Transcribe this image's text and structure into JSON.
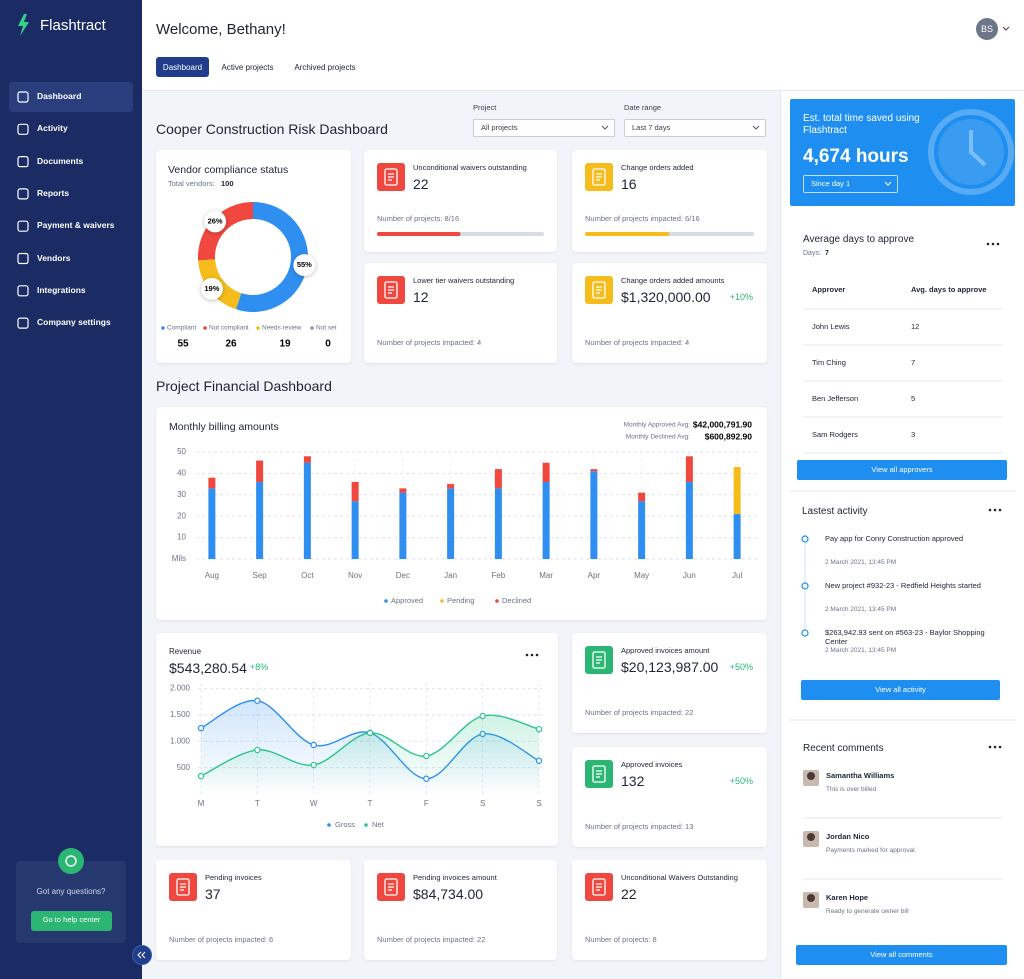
{
  "sidebar": {
    "brand": "Flashtract",
    "nav": [
      "Dashboard",
      "Activity",
      "Documents",
      "Reports",
      "Payment & waivers",
      "Vendors",
      "Integrations",
      "Company settings"
    ],
    "help_text": "Got any questions?",
    "help_button": "Go to help center"
  },
  "header": {
    "title": "Welcome, Bethany!",
    "avatar": "BS",
    "tabs": [
      "Dashboard",
      "Active projects",
      "Archived projects"
    ]
  },
  "risk": {
    "title": "Cooper Construction Risk Dashboard",
    "project_label": "Project",
    "project_value": "All projects",
    "date_label": "Date range",
    "date_value": "Last 7 days",
    "compliance": {
      "type": "pie",
      "title": "Vendor compliance status",
      "total_label": "Total vendors:",
      "total": 100,
      "segments": [
        {
          "name": "Compliant",
          "value": 55,
          "value_label": "55%",
          "color": "#2e8ff0"
        },
        {
          "name": "Not compliant",
          "value": 26,
          "value_label": "26%",
          "color": "#f0473f"
        },
        {
          "name": "Needs review",
          "value": 19,
          "value_label": "19%",
          "color": "#f5bc1c"
        },
        {
          "name": "Not set",
          "value": 0,
          "color": "#8a94a6"
        }
      ]
    },
    "cards": [
      {
        "title": "Unconditional waivers outstanding",
        "value": 22,
        "footer": "Number of projects: 8/16",
        "icon_color": "#f0473f"
      },
      {
        "title": "Change orders added",
        "value": 16,
        "footer": "Number of projects impacted: 6/16",
        "icon_color": "#f5bc1c"
      },
      {
        "title": "Lower tier waivers outstanding",
        "value": 12,
        "footer": "Number of projects impacted: 4",
        "icon_color": "#f0473f"
      },
      {
        "title": "Change orders added amounts",
        "value": "$1,320,000.00",
        "change": "+10%",
        "footer": "Number of projects impacted: 4",
        "icon_color": "#f5bc1c"
      }
    ]
  },
  "financial": {
    "title": "Project Financial Dashboard",
    "billing": {
      "type": "bar",
      "stacked": true,
      "title": "Monthly billing amounts",
      "averages": [
        {
          "label": "Monthly Approved Avg:",
          "value": "$42,000,791.90"
        },
        {
          "label": "Monthly Declined Avg:",
          "value": "$600,892.90"
        }
      ],
      "categories": [
        "Aug",
        "Sep",
        "Oct",
        "Nov",
        "Dec",
        "Jan",
        "Feb",
        "Mar",
        "Apr",
        "May",
        "Jun",
        "Jul"
      ],
      "series": [
        {
          "name": "Approved",
          "color": "#2e8ff0",
          "values": [
            33,
            36,
            45,
            27,
            31,
            33,
            33,
            36,
            41,
            27,
            36,
            21
          ]
        },
        {
          "name": "Pending",
          "color": "#f5bc1c",
          "values": [
            0,
            0,
            0,
            0,
            0,
            0,
            0,
            0,
            0,
            0,
            0,
            22
          ]
        },
        {
          "name": "Declined",
          "color": "#f0473f",
          "values": [
            5,
            10,
            3,
            9,
            2,
            2,
            9,
            9,
            1,
            4,
            12,
            0
          ]
        }
      ],
      "ylim": [
        0,
        50
      ],
      "yticks": [
        {
          "value": 0,
          "label": "Mils"
        },
        10,
        20,
        30,
        40,
        50
      ],
      "grid": true
    },
    "revenue": {
      "type": "line",
      "title": "Revenue",
      "value": "$543,280.54",
      "change": "+8%",
      "categories": [
        "M",
        "T",
        "W",
        "T",
        "F",
        "S",
        "S"
      ],
      "series": [
        {
          "name": "Gross",
          "color": "#2e8ff0",
          "values": [
            1250,
            1770,
            930,
            1160,
            290,
            1140,
            630
          ]
        },
        {
          "name": "Net",
          "color": "#2bc48a",
          "values": [
            340,
            835,
            550,
            1160,
            720,
            1480,
            1230
          ]
        }
      ],
      "ylim": [
        0,
        2100
      ],
      "yticks": [
        500,
        {
          "value": 1000,
          "label": "1.000"
        },
        {
          "value": 1500,
          "label": "1.500"
        },
        {
          "value": 2000,
          "label": "2.000"
        }
      ],
      "grid": true
    },
    "cards": [
      {
        "title": "Approved invoices amount",
        "value": "$20,123,987.00",
        "change": "+50%",
        "footer": "Number of projects impacted: 22",
        "icon_color": "#2bb673"
      },
      {
        "title": "Approved invoices",
        "value": 132,
        "change": "+50%",
        "footer": "Number of projects impacted: 13",
        "icon_color": "#2bb673"
      },
      {
        "title": "Pending invoices",
        "value": 37,
        "footer": "Number of projects impacted: 6",
        "icon_color": "#f0473f"
      },
      {
        "title": "Pending invoices amount",
        "value": "$84,734.00",
        "footer": "Number of projects impacted: 22",
        "icon_color": "#f0473f"
      },
      {
        "title": "Unconditional Waivers Outstanding",
        "value": 22,
        "footer": "Number of projects: 8",
        "icon_color": "#f0473f"
      }
    ]
  },
  "time_saved": {
    "title": "Est. total time saved using Flashtract",
    "value": "4,674 hours",
    "select": "Since day 1"
  },
  "approvals": {
    "title": "Average days to approve",
    "days_label": "Days:",
    "days": 7,
    "columns": [
      "Approver",
      "Avg. days to approve"
    ],
    "rows": [
      [
        "John Lewis",
        12
      ],
      [
        "Tim Ching",
        7
      ],
      [
        "Ben Jefferson",
        5
      ],
      [
        "Sam Rodgers",
        3
      ]
    ],
    "button": "View all approvers"
  },
  "activity": {
    "title": "Lastest activity",
    "items": [
      {
        "text": "Pay app for Conry Construction approved",
        "date": "2 March 2021, 13:45 PM"
      },
      {
        "text": "New project #932-23 - Redfield Heights started",
        "date": "2 March 2021, 13:45 PM"
      },
      {
        "text": "$263,942.93 sent on #563-23 - Baylor Shopping Center",
        "date": "2 March 2021, 13:45 PM"
      }
    ],
    "button": "View all activity"
  },
  "comments": {
    "title": "Recent comments",
    "items": [
      {
        "name": "Samantha Williams",
        "text": "This is over billed"
      },
      {
        "name": "Jordan Nico",
        "text": "Payments marked for approval."
      },
      {
        "name": "Karen Hope",
        "text": "Ready to generate owner bill"
      }
    ],
    "button": "View all comments"
  }
}
